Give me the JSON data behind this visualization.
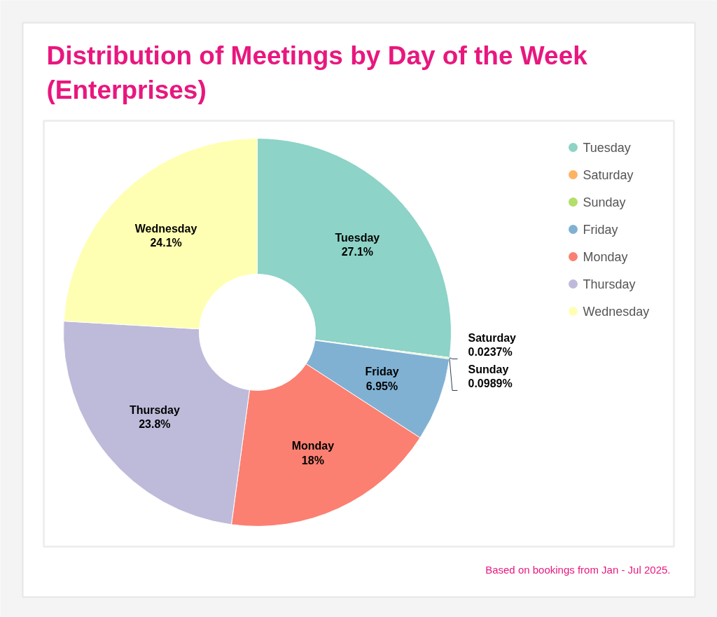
{
  "chart_data": {
    "type": "donut",
    "title": "Distribution of Meetings by Day of the Week (Enterprises)",
    "categories": [
      "Tuesday",
      "Saturday",
      "Sunday",
      "Friday",
      "Monday",
      "Thursday",
      "Wednesday"
    ],
    "values": [
      27.1,
      0.0237,
      0.0989,
      6.95,
      18,
      23.8,
      24.1
    ],
    "value_labels": [
      "27.1%",
      "0.0237%",
      "0.0989%",
      "6.95%",
      "18%",
      "23.8%",
      "24.1%"
    ],
    "colors": [
      "#8dd3c7",
      "#fdb462",
      "#b3de69",
      "#80b1d3",
      "#fb8072",
      "#bebada",
      "#ffffb3"
    ],
    "legend": "top right",
    "annotations": [
      "Based on bookings from Jan - Jul 2025."
    ]
  }
}
